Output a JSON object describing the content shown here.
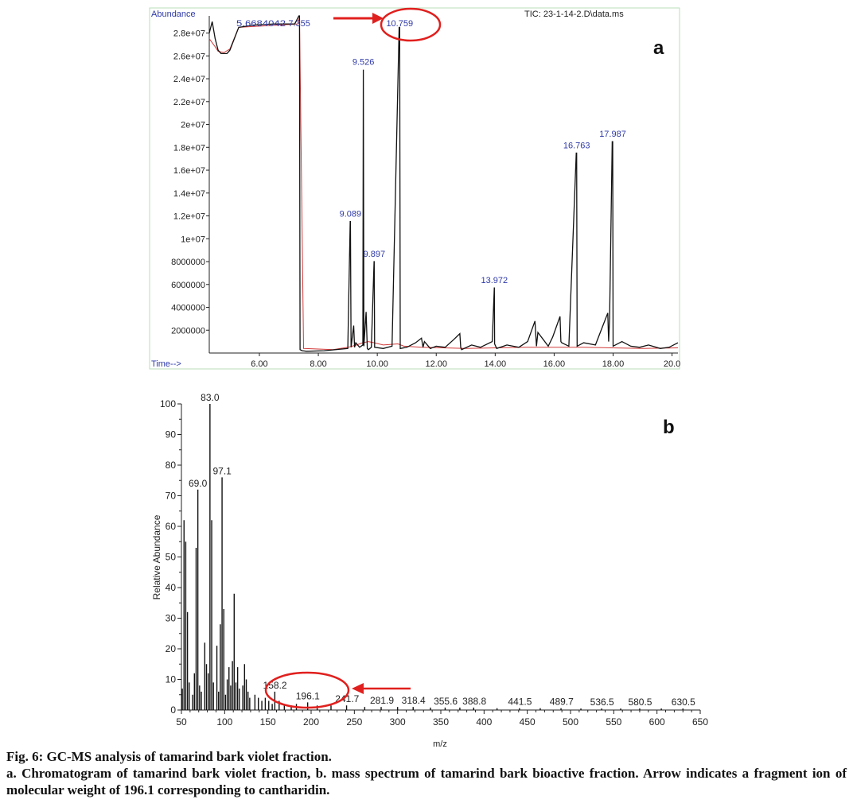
{
  "panels": [
    {
      "letter": "a",
      "chart_data": {
        "type": "line",
        "title": "TIC: 23-1-14-2.D\\data.ms",
        "xlabel": "Time-->",
        "ylabel": "Abundance",
        "xlim": [
          4.3,
          20.2
        ],
        "ylim": [
          0,
          29500000
        ],
        "x_ticks": [
          6,
          8,
          10,
          12,
          14,
          16,
          18,
          20
        ],
        "x_tick_labels": [
          "6.00",
          "8.00",
          "10.00",
          "12.00",
          "14.00",
          "16.00",
          "18.00",
          "20.0"
        ],
        "y_ticks": [
          2000000,
          4000000,
          6000000,
          8000000,
          10000000,
          12000000,
          14000000,
          16000000,
          18000000,
          20000000,
          22000000,
          24000000,
          26000000,
          28000000
        ],
        "y_tick_labels": [
          "2000000",
          "4000000",
          "6000000",
          "8000000",
          "1e+07",
          "1.2e+07",
          "1.4e+07",
          "1.6e+07",
          "1.8e+07",
          "2e+07",
          "2.2e+07",
          "2.4e+07",
          "2.6e+07",
          "2.8e+07"
        ],
        "series": [
          {
            "color": "#111111",
            "x": [
              4.3,
              4.4,
              4.5,
              4.6,
              4.7,
              4.8,
              4.9,
              5.0,
              5.3,
              5.8,
              6.5,
              7.2,
              7.34,
              7.36,
              7.38,
              7.45,
              7.6,
              8.2,
              9.0,
              9.08,
              9.09,
              9.11,
              9.2,
              9.23,
              9.27,
              9.4,
              9.51,
              9.526,
              9.545,
              9.62,
              9.66,
              9.7,
              9.8,
              9.89,
              9.897,
              9.91,
              10.2,
              10.5,
              10.74,
              10.759,
              10.78,
              11.0,
              11.3,
              11.5,
              11.55,
              11.6,
              11.8,
              12.0,
              12.3,
              12.6,
              12.8,
              12.83,
              12.86,
              13.2,
              13.5,
              13.9,
              13.97,
              13.972,
              13.98,
              14.05,
              14.4,
              14.8,
              15.1,
              15.35,
              15.4,
              15.45,
              15.8,
              15.95,
              16.2,
              16.23,
              16.26,
              16.5,
              16.75,
              16.763,
              16.78,
              17.0,
              17.4,
              17.82,
              17.85,
              17.88,
              17.97,
              17.987,
              18.0,
              18.3,
              18.6,
              18.9,
              19.2,
              19.6,
              19.9,
              20.2
            ],
            "y": [
              28000000,
              29000000,
              27500000,
              26500000,
              26200000,
              26200000,
              26200000,
              26500000,
              28500000,
              28700000,
              28800000,
              28800000,
              29500000,
              29500000,
              300000,
              200000,
              150000,
              200000,
              400000,
              11500000,
              11500000,
              500000,
              2400000,
              500000,
              900000,
              500000,
              700000,
              24800000,
              600000,
              3600000,
              400000,
              300000,
              500000,
              8000000,
              8000000,
              500000,
              400000,
              600000,
              28500000,
              28500000,
              400000,
              500000,
              900000,
              1300000,
              500000,
              1000000,
              400000,
              600000,
              500000,
              1200000,
              1700000,
              500000,
              300000,
              700000,
              500000,
              1000000,
              5700000,
              5700000,
              800000,
              400000,
              700000,
              500000,
              1000000,
              2800000,
              600000,
              1800000,
              600000,
              1400000,
              3200000,
              1000000,
              900000,
              600000,
              17500000,
              17500000,
              600000,
              900000,
              700000,
              3500000,
              1000000,
              3000000,
              18500000,
              18500000,
              600000,
              1000000,
              600000,
              500000,
              700000,
              400000,
              500000,
              900000
            ]
          },
          {
            "color": "#d23a3a",
            "x": [
              4.3,
              4.5,
              4.6,
              4.8,
              5.0,
              5.3,
              7.3,
              7.36,
              7.5,
              8.5,
              9.0,
              9.3,
              9.5,
              9.7,
              9.9,
              10.2,
              10.7,
              10.9,
              11.5,
              13.0,
              15.0,
              17.0,
              19.0,
              20.2
            ],
            "y": [
              27500000,
              26800000,
              26400000,
              26300000,
              26600000,
              28500000,
              28800000,
              29400000,
              400000,
              300000,
              500000,
              700000,
              900000,
              1000000,
              900000,
              700000,
              800000,
              600000,
              500000,
              400000,
              500000,
              500000,
              400000,
              450000
            ]
          }
        ],
        "peak_labels": [
          {
            "x": 7.355,
            "text": "7.355"
          },
          {
            "x": 9.089,
            "text": "9.089"
          },
          {
            "x": 9.526,
            "text": "9.526"
          },
          {
            "x": 9.897,
            "text": "9.897"
          },
          {
            "x": 10.759,
            "text": "10.759"
          },
          {
            "x": 13.972,
            "text": "13.972"
          },
          {
            "x": 16.763,
            "text": "16.763"
          },
          {
            "x": 17.987,
            "text": "17.987"
          }
        ],
        "highlight": "10.759",
        "cluttered_label": "5.6684042"
      }
    },
    {
      "letter": "b",
      "chart_data": {
        "type": "bar",
        "xlabel": "m/z",
        "ylabel": "Relative Abundance",
        "xlim": [
          50,
          650
        ],
        "ylim": [
          0,
          100
        ],
        "x_ticks": [
          50,
          100,
          150,
          200,
          250,
          300,
          350,
          400,
          450,
          500,
          550,
          600,
          650
        ],
        "y_ticks": [
          0,
          10,
          20,
          30,
          40,
          50,
          60,
          70,
          80,
          90,
          100
        ],
        "x": [
          51,
          53,
          55,
          57,
          59,
          63,
          65,
          67,
          69,
          71,
          73,
          77,
          79,
          81,
          83,
          85,
          87,
          91,
          93,
          95,
          97,
          99,
          101,
          103,
          105,
          107,
          109,
          111,
          113,
          115,
          117,
          121,
          123,
          125,
          127,
          129,
          135,
          139,
          143,
          147,
          151,
          155,
          158,
          163,
          169,
          177,
          183,
          196,
          207,
          223,
          241,
          262,
          281,
          300,
          318,
          338,
          355,
          372,
          388,
          415,
          441,
          465,
          489,
          512,
          536,
          558,
          580,
          605,
          630
        ],
        "values": [
          7,
          62,
          55,
          32,
          9,
          5,
          12,
          53,
          72,
          8,
          6,
          22,
          15,
          12,
          100,
          62,
          9,
          21,
          6,
          28,
          76,
          33,
          5,
          10,
          14,
          8,
          16,
          38,
          9,
          14,
          7,
          8,
          15,
          10,
          6,
          4,
          5,
          4,
          3,
          4,
          3,
          2,
          6,
          3,
          2,
          1.5,
          2,
          2.5,
          1.5,
          1.5,
          1.5,
          1,
          1,
          1,
          1,
          0.8,
          0.8,
          0.8,
          0.8,
          0.6,
          0.6,
          0.6,
          0.6,
          0.5,
          0.5,
          0.5,
          0.5,
          0.5,
          0.5
        ],
        "peak_labels": [
          {
            "x": 69.0,
            "text": "69.0"
          },
          {
            "x": 83.0,
            "text": "83.0"
          },
          {
            "x": 97.1,
            "text": "97.1"
          },
          {
            "x": 158.2,
            "text": "158.2"
          },
          {
            "x": 196.1,
            "text": "196.1"
          },
          {
            "x": 241.7,
            "text": "241.7"
          },
          {
            "x": 281.9,
            "text": "281.9"
          },
          {
            "x": 318.4,
            "text": "318.4"
          },
          {
            "x": 355.6,
            "text": "355.6"
          },
          {
            "x": 388.8,
            "text": "388.8"
          },
          {
            "x": 441.5,
            "text": "441.5"
          },
          {
            "x": 489.7,
            "text": "489.7"
          },
          {
            "x": 536.5,
            "text": "536.5"
          },
          {
            "x": 580.5,
            "text": "580.5"
          },
          {
            "x": 630.5,
            "text": "630.5"
          }
        ],
        "highlight": "196.1"
      }
    }
  ],
  "caption": {
    "title": "Fig. 6: GC-MS analysis of tamarind bark violet fraction.",
    "body": "a. Chromatogram of tamarind bark violet fraction, b. mass spectrum of tamarind bark bioactive fraction. Arrow indicates a fragment ion of molecular weight of 196.1 corresponding to cantharidin."
  },
  "colors": {
    "trace": "#111111",
    "baseline": "#d23a3a",
    "label_blue": "#2f3aa8",
    "annotation_red": "#e0201e",
    "axis": "#222222"
  }
}
